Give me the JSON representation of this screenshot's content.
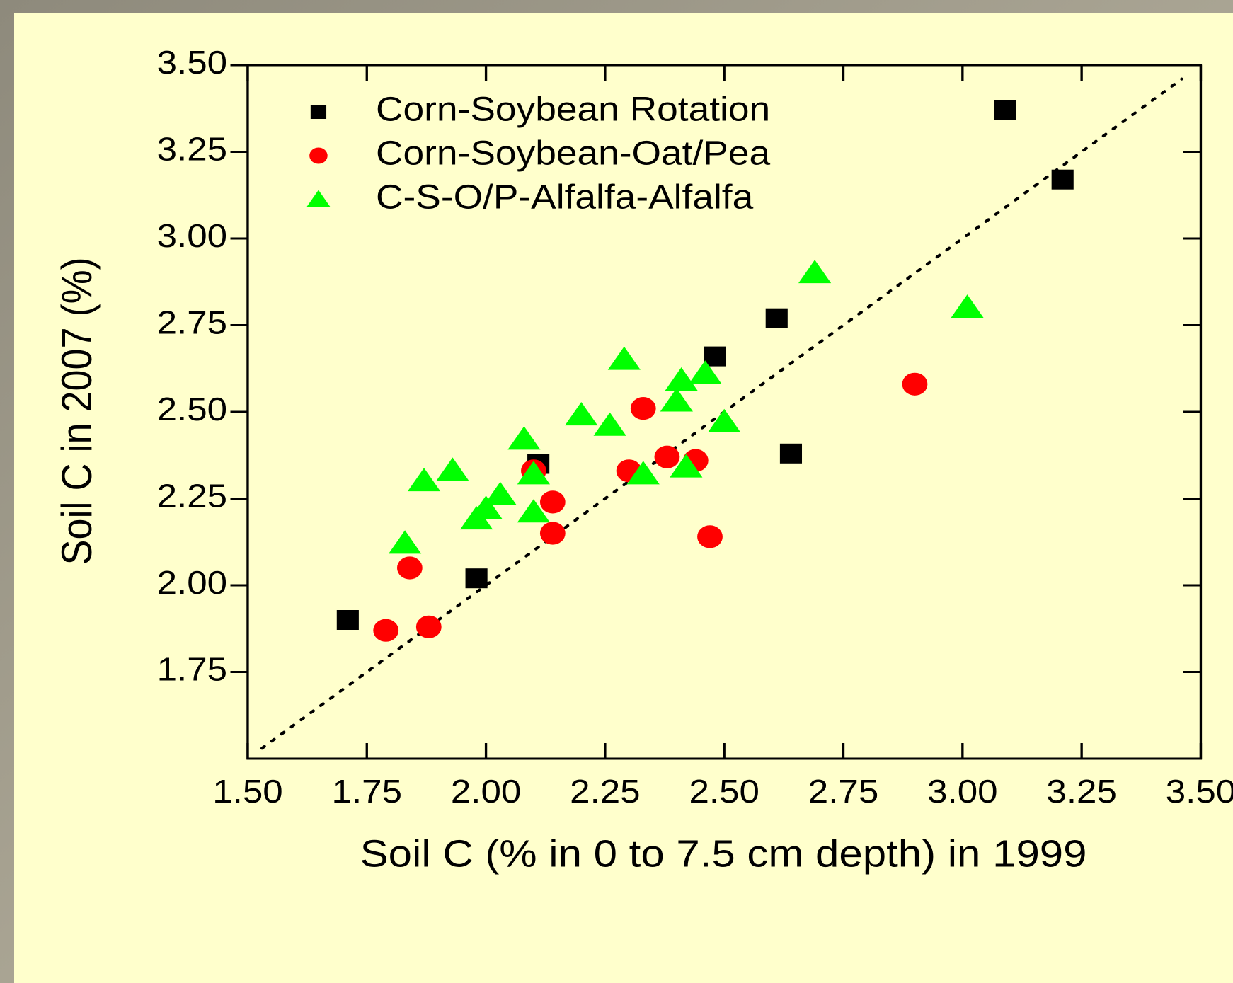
{
  "chart_data": {
    "type": "scatter",
    "xlabel": "Soil C (% in 0 to 7.5 cm depth) in 1999",
    "ylabel": "Soil C in 2007 (%)",
    "xlim": [
      1.5,
      3.5
    ],
    "ylim": [
      1.5,
      3.5
    ],
    "xticks": [
      {
        "value": 1.5,
        "label": "1.50"
      },
      {
        "value": 1.75,
        "label": "1.75"
      },
      {
        "value": 2.0,
        "label": "2.00"
      },
      {
        "value": 2.25,
        "label": "2.25"
      },
      {
        "value": 2.5,
        "label": "2.50"
      },
      {
        "value": 2.75,
        "label": "2.75"
      },
      {
        "value": 3.0,
        "label": "3.00"
      },
      {
        "value": 3.25,
        "label": "3.25"
      },
      {
        "value": 3.5,
        "label": "3.50"
      }
    ],
    "yticks": [
      {
        "value": 1.75,
        "label": "1.75"
      },
      {
        "value": 2.0,
        "label": "2.00"
      },
      {
        "value": 2.25,
        "label": "2.25"
      },
      {
        "value": 2.5,
        "label": "2.50"
      },
      {
        "value": 2.75,
        "label": "2.75"
      },
      {
        "value": 3.0,
        "label": "3.00"
      },
      {
        "value": 3.25,
        "label": "3.25"
      },
      {
        "value": 3.5,
        "label": "3.50"
      }
    ],
    "reference_line": {
      "x": [
        1.53,
        3.46
      ],
      "y": [
        1.53,
        3.46
      ]
    },
    "legend": "top-left",
    "series": [
      {
        "name": "Corn-Soybean Rotation",
        "color": "#000000",
        "marker": "square",
        "x": [
          1.71,
          1.98,
          2.11,
          2.48,
          2.61,
          2.64,
          3.09,
          3.21
        ],
        "values": [
          1.9,
          2.02,
          2.35,
          2.66,
          2.77,
          2.38,
          3.37,
          3.17
        ]
      },
      {
        "name": "Corn-Soybean-Oat/Pea",
        "color": "#ff0000",
        "marker": "circle",
        "x": [
          1.79,
          1.84,
          1.88,
          2.1,
          2.14,
          2.14,
          2.3,
          2.33,
          2.38,
          2.44,
          2.47,
          2.9
        ],
        "values": [
          1.87,
          2.05,
          1.88,
          2.33,
          2.24,
          2.15,
          2.33,
          2.51,
          2.37,
          2.36,
          2.14,
          2.58
        ]
      },
      {
        "name": "C-S-O/P-Alfalfa-Alfalfa",
        "color": "#00ff00",
        "marker": "triangle",
        "x": [
          1.83,
          1.87,
          1.93,
          1.98,
          2.0,
          2.03,
          2.08,
          2.1,
          2.1,
          2.2,
          2.26,
          2.29,
          2.33,
          2.4,
          2.41,
          2.42,
          2.46,
          2.5,
          2.69,
          3.01
        ],
        "values": [
          2.12,
          2.3,
          2.33,
          2.19,
          2.22,
          2.26,
          2.42,
          2.32,
          2.21,
          2.49,
          2.46,
          2.65,
          2.32,
          2.53,
          2.59,
          2.34,
          2.61,
          2.47,
          2.9,
          2.8
        ]
      }
    ]
  }
}
